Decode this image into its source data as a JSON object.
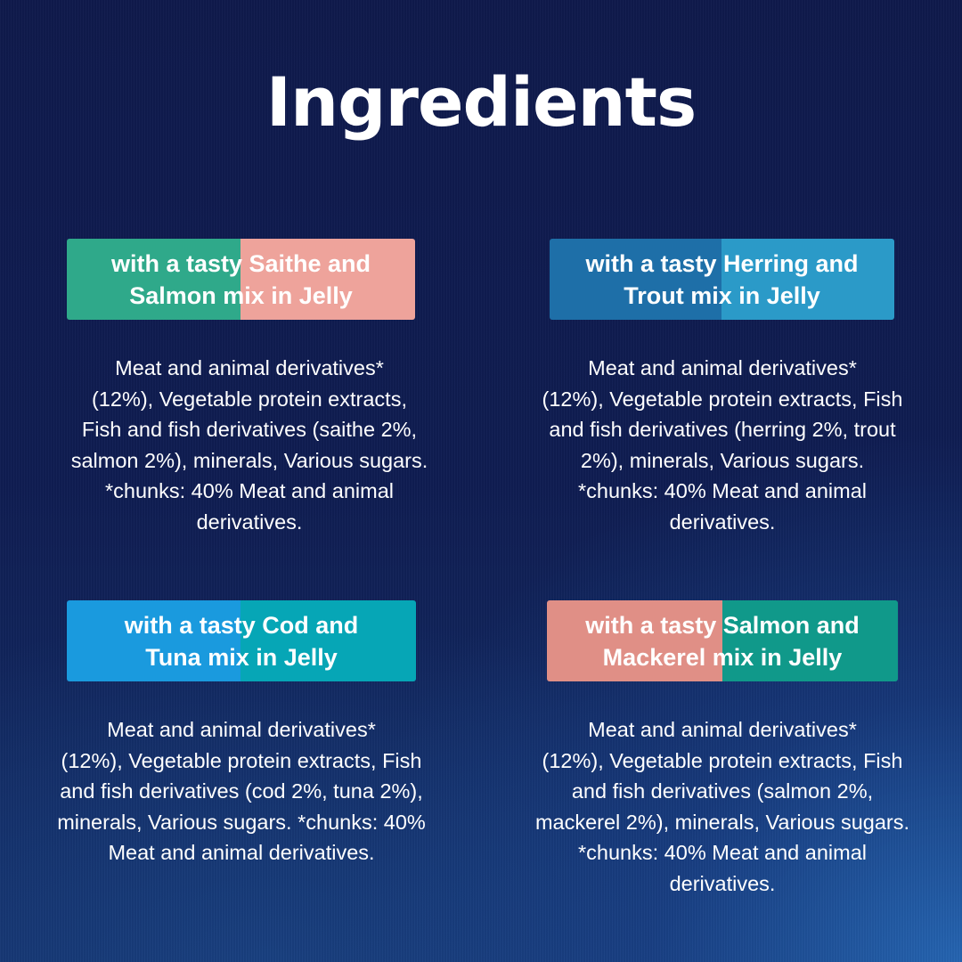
{
  "title": "Ingredients",
  "variants": [
    {
      "banner": "with a tasty Saithe and\nSalmon mix in Jelly",
      "colors": [
        "#2fa98a",
        "#eea39b"
      ],
      "lines": [
        "Meat and animal derivatives*",
        "(12%), Vegetable protein extracts,",
        "Fish and fish derivatives (saithe 2%,",
        "salmon 2%), minerals, Various sugars.",
        "*chunks: 40% Meat and animal",
        "derivatives."
      ]
    },
    {
      "banner": "with a tasty Herring and\nTrout mix in Jelly",
      "colors": [
        "#1e6fa8",
        "#2b9ac8"
      ],
      "lines": [
        "Meat and animal derivatives*",
        "(12%), Vegetable protein extracts, Fish",
        "and fish derivatives (herring 2%, trout",
        "2%), minerals, Various sugars.",
        "*chunks: 40% Meat and animal",
        "derivatives."
      ]
    },
    {
      "banner": "with a tasty Cod and\nTuna mix in Jelly",
      "colors": [
        "#1a9ade",
        "#06a6b6"
      ],
      "lines": [
        "Meat and animal derivatives*",
        "(12%), Vegetable protein extracts, Fish",
        "and fish derivatives (cod 2%, tuna 2%),",
        "minerals, Various sugars. *chunks: 40%",
        "Meat and animal derivatives."
      ]
    },
    {
      "banner": "with a tasty Salmon and\nMackerel mix in Jelly",
      "colors": [
        "#e08f86",
        "#10998a"
      ],
      "lines": [
        "Meat and animal derivatives*",
        "(12%), Vegetable protein extracts, Fish",
        "and fish derivatives (salmon 2%,",
        "mackerel 2%), minerals, Various sugars.",
        "*chunks: 40% Meat and animal",
        "derivatives."
      ]
    }
  ]
}
